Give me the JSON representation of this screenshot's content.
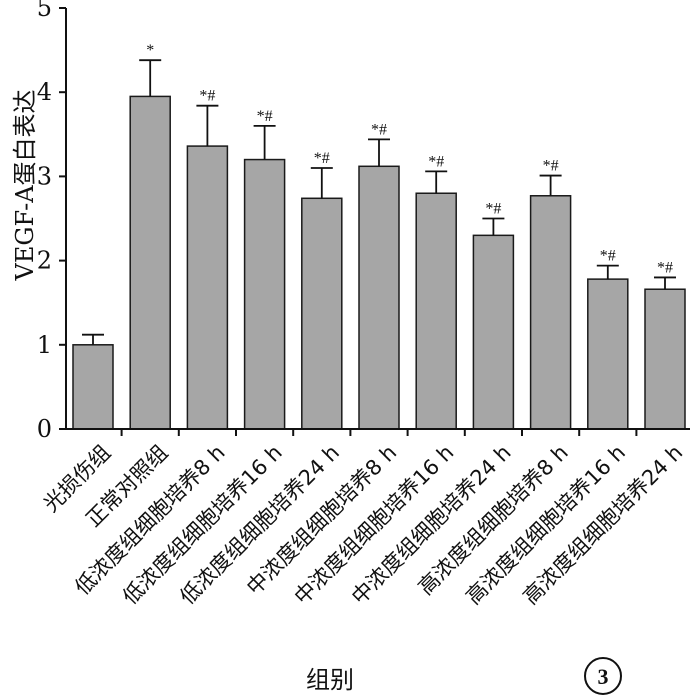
{
  "chart_data": {
    "type": "bar",
    "title": "",
    "xlabel": "组别",
    "ylabel": "VEGF-A蛋白表达",
    "ylim": [
      0,
      5
    ],
    "yticks": [
      "0",
      "1",
      "2",
      "3",
      "4",
      "5"
    ],
    "grid": false,
    "categories": [
      "光损伤组",
      "正常对照组",
      "低浓度组细胞培养8 h",
      "低浓度组细胞培养16 h",
      "低浓度组细胞培养24 h",
      "中浓度组细胞培养8 h",
      "中浓度组细胞培养16 h",
      "中浓度组细胞培养24 h",
      "高浓度组细胞培养8 h",
      "高浓度组细胞培养16 h",
      "高浓度组细胞培养24 h"
    ],
    "values": [
      1.0,
      3.95,
      3.36,
      3.2,
      2.74,
      3.12,
      2.8,
      2.3,
      2.77,
      1.78,
      1.66
    ],
    "errors": [
      0.12,
      0.43,
      0.48,
      0.4,
      0.36,
      0.32,
      0.26,
      0.2,
      0.24,
      0.16,
      0.14
    ],
    "annotations": [
      "",
      "*",
      "*#",
      "*#",
      "*#",
      "*#",
      "*#",
      "*#",
      "*#",
      "*#",
      "*#"
    ],
    "bar_color": "#a6a6a6",
    "edge_color": "#1a1a1a"
  },
  "panel_label": "3"
}
